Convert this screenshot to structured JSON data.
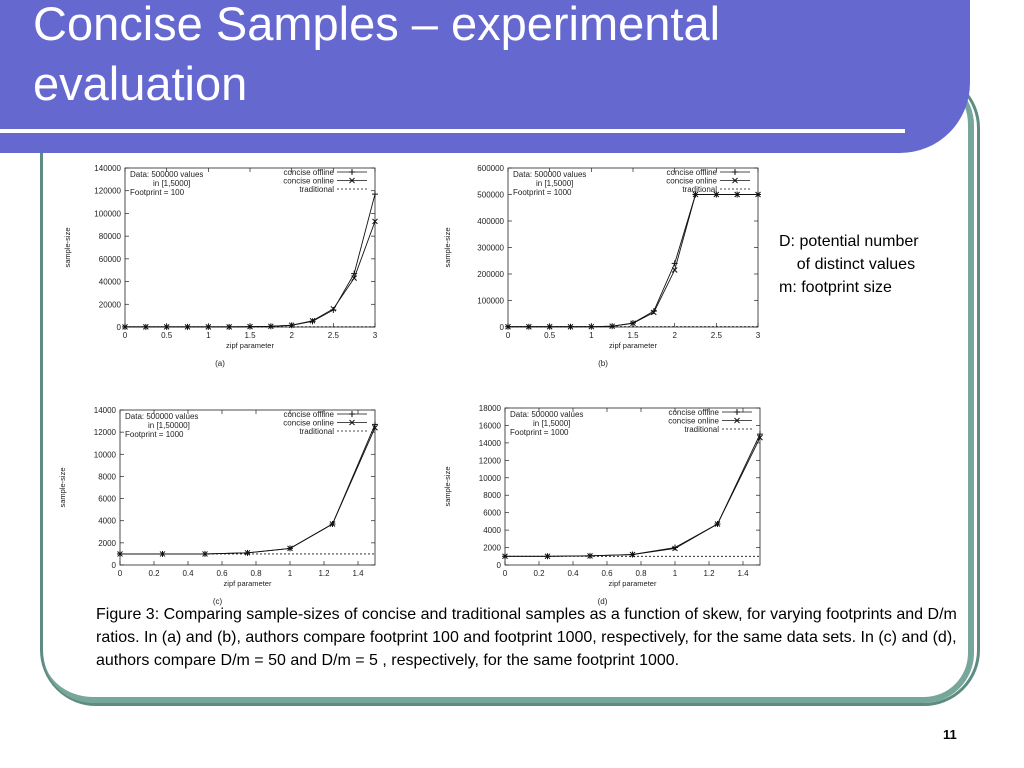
{
  "slide": {
    "title_line1": "Concise Samples – experimental",
    "title_line2": "evaluation",
    "notes": [
      "D: potential number",
      "    of distinct values",
      "m: footprint size"
    ],
    "caption": "Figure 3: Comparing sample-sizes of concise and traditional samples as a function of skew, for varying footprints and D/m ratios. In (a) and (b), authors compare footprint 100 and footprint 1000, respectively, for the same data sets. In (c) and (d), authors compare D/m = 50 and D/m = 5 , respectively, for the same footprint 1000.",
    "page_number": "11"
  },
  "chart_data": [
    {
      "type": "line",
      "panel_label": "(a)",
      "annotation": [
        "Data: 500000 values",
        "in [1,5000]",
        "Footprint = 100"
      ],
      "xlabel": "zipf parameter",
      "ylabel": "sample-size",
      "xlim": [
        0,
        3
      ],
      "ylim": [
        0,
        140000
      ],
      "xticks": [
        "0",
        "0.5",
        "1",
        "1.5",
        "2",
        "2.5",
        "3"
      ],
      "xtick_values": [
        0,
        0.5,
        1,
        1.5,
        2,
        2.5,
        3
      ],
      "yticks": [
        "0",
        "20000",
        "40000",
        "60000",
        "80000",
        "100000",
        "120000",
        "140000"
      ],
      "ytick_values": [
        0,
        20000,
        40000,
        60000,
        80000,
        100000,
        120000,
        140000
      ],
      "legend_position": "top-right",
      "x": [
        0,
        0.25,
        0.5,
        0.75,
        1,
        1.25,
        1.5,
        1.75,
        2,
        2.25,
        2.5,
        2.75,
        3
      ],
      "series": [
        {
          "name": "concise offline",
          "values": [
            100,
            100,
            100,
            100,
            100,
            100,
            300,
            600,
            1500,
            5000,
            15000,
            47000,
            117000
          ]
        },
        {
          "name": "concise online",
          "values": [
            100,
            100,
            100,
            100,
            100,
            100,
            300,
            600,
            1600,
            5500,
            16000,
            43000,
            93000
          ]
        },
        {
          "name": "traditional",
          "values": [
            100,
            100,
            100,
            100,
            100,
            100,
            100,
            100,
            100,
            100,
            100,
            100,
            100
          ]
        }
      ]
    },
    {
      "type": "line",
      "panel_label": "(b)",
      "annotation": [
        "Data: 500000 values",
        "in [1,5000]",
        "Footprint = 1000"
      ],
      "xlabel": "zipf parameter",
      "ylabel": "sample-size",
      "xlim": [
        0,
        3
      ],
      "ylim": [
        0,
        600000
      ],
      "xticks": [
        "0",
        "0.5",
        "1",
        "1.5",
        "2",
        "2.5",
        "3"
      ],
      "xtick_values": [
        0,
        0.5,
        1,
        1.5,
        2,
        2.5,
        3
      ],
      "yticks": [
        "0",
        "100000",
        "200000",
        "300000",
        "400000",
        "500000",
        "600000"
      ],
      "ytick_values": [
        0,
        100000,
        200000,
        300000,
        400000,
        500000,
        600000
      ],
      "legend_position": "top-right",
      "x": [
        0,
        0.25,
        0.5,
        0.75,
        1,
        1.25,
        1.5,
        1.75,
        2,
        2.25,
        2.5,
        2.75,
        3
      ],
      "series": [
        {
          "name": "concise offline",
          "values": [
            1000,
            1000,
            1000,
            1000,
            1200,
            3000,
            15000,
            60000,
            240000,
            500000,
            500000,
            500000,
            500000
          ]
        },
        {
          "name": "concise online",
          "values": [
            1000,
            1000,
            1000,
            1000,
            1200,
            3000,
            14000,
            55000,
            215000,
            500000,
            500000,
            500000,
            500000
          ]
        },
        {
          "name": "traditional",
          "values": [
            1000,
            1000,
            1000,
            1000,
            1000,
            1000,
            1000,
            1000,
            1000,
            1000,
            1000,
            1000,
            1000
          ]
        }
      ]
    },
    {
      "type": "line",
      "panel_label": "(c)",
      "annotation": [
        "Data: 500000 values",
        "in [1,50000]",
        "Footprint = 1000"
      ],
      "xlabel": "zipf parameter",
      "ylabel": "sample-size",
      "xlim": [
        0,
        1.5
      ],
      "ylim": [
        0,
        14000
      ],
      "xticks": [
        "0",
        "0.2",
        "0.4",
        "0.6",
        "0.8",
        "1",
        "1.2",
        "1.4"
      ],
      "xtick_values": [
        0,
        0.2,
        0.4,
        0.6,
        0.8,
        1,
        1.2,
        1.4
      ],
      "yticks": [
        "0",
        "2000",
        "4000",
        "6000",
        "8000",
        "10000",
        "12000",
        "14000"
      ],
      "ytick_values": [
        0,
        2000,
        4000,
        6000,
        8000,
        10000,
        12000,
        14000
      ],
      "legend_position": "top-right",
      "x": [
        0,
        0.25,
        0.5,
        0.75,
        1,
        1.25,
        1.5
      ],
      "series": [
        {
          "name": "concise offline",
          "values": [
            1000,
            1000,
            1000,
            1100,
            1500,
            3700,
            12700
          ]
        },
        {
          "name": "concise online",
          "values": [
            1000,
            1000,
            1000,
            1100,
            1500,
            3700,
            12400
          ]
        },
        {
          "name": "traditional",
          "values": [
            1000,
            1000,
            1000,
            1000,
            1000,
            1000,
            1000
          ]
        }
      ]
    },
    {
      "type": "line",
      "panel_label": "(d)",
      "annotation": [
        "Data: 500000 values",
        "in [1,5000]",
        "Footprint = 1000"
      ],
      "xlabel": "zipf parameter",
      "ylabel": "sample-size",
      "xlim": [
        0,
        1.5
      ],
      "ylim": [
        0,
        18000
      ],
      "xticks": [
        "0",
        "0.2",
        "0.4",
        "0.6",
        "0.8",
        "1",
        "1.2",
        "1.4"
      ],
      "xtick_values": [
        0,
        0.2,
        0.4,
        0.6,
        0.8,
        1,
        1.2,
        1.4
      ],
      "yticks": [
        "0",
        "2000",
        "4000",
        "6000",
        "8000",
        "10000",
        "12000",
        "14000",
        "16000",
        "18000"
      ],
      "ytick_values": [
        0,
        2000,
        4000,
        6000,
        8000,
        10000,
        12000,
        14000,
        16000,
        18000
      ],
      "legend_position": "top-right",
      "x": [
        0,
        0.25,
        0.5,
        0.75,
        1,
        1.25,
        1.5
      ],
      "series": [
        {
          "name": "concise offline",
          "values": [
            1000,
            1000,
            1050,
            1200,
            2000,
            4700,
            15000
          ]
        },
        {
          "name": "concise online",
          "values": [
            1000,
            1000,
            1050,
            1200,
            1900,
            4700,
            14600
          ]
        },
        {
          "name": "traditional",
          "values": [
            1000,
            1000,
            1000,
            1000,
            1000,
            1000,
            1000
          ]
        }
      ]
    }
  ]
}
